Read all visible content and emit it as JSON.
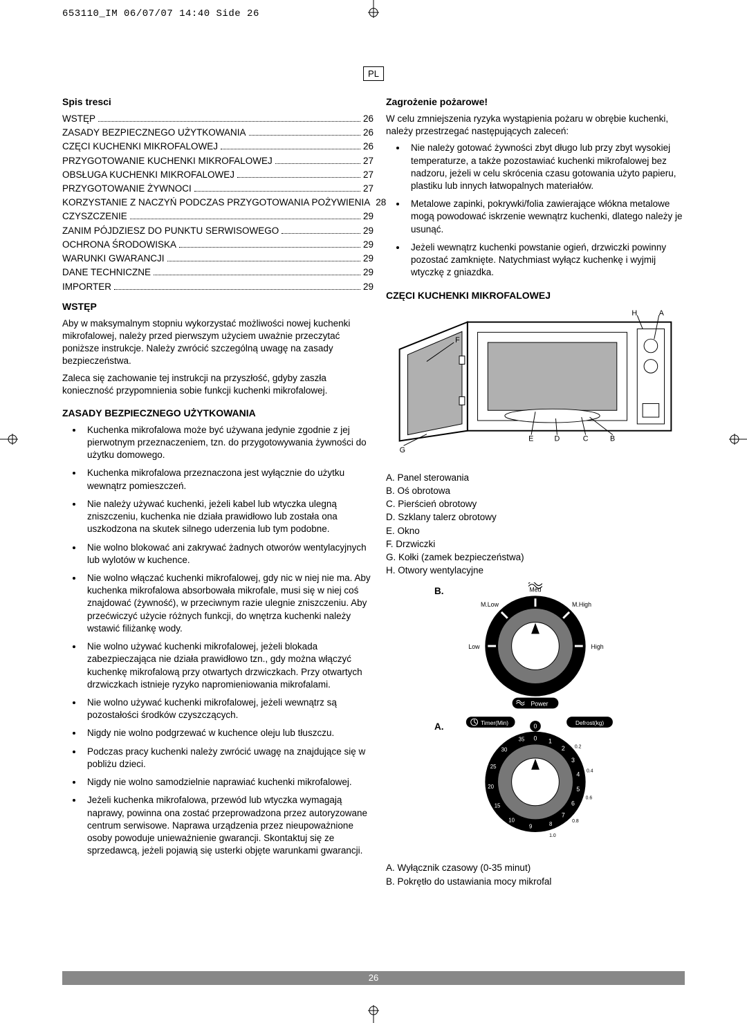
{
  "header": {
    "crop_text": "653110_IM  06/07/07  14:40  Side 26",
    "lang_badge": "PL"
  },
  "toc": {
    "title": "Spis tresci",
    "items": [
      {
        "label": "WSTĘP",
        "page": "26"
      },
      {
        "label": "ZASADY BEZPIECZNEGO UŻYTKOWANIA",
        "page": "26"
      },
      {
        "label": "CZĘCI KUCHENKI MIKROFALOWEJ",
        "page": "26"
      },
      {
        "label": "PRZYGOTOWANIE KUCHENKI MIKROFALOWEJ",
        "page": "27"
      },
      {
        "label": "OBSŁUGA KUCHENKI MIKROFALOWEJ",
        "page": "27"
      },
      {
        "label": "PRZYGOTOWANIE ŻYWNOCI",
        "page": "27"
      },
      {
        "label": "KORZYSTANIE Z NACZYŃ PODCZAS PRZYGOTOWANIA POŻYWIENIA",
        "page": "28"
      },
      {
        "label": "CZYSZCZENIE",
        "page": "29"
      },
      {
        "label": "ZANIM PÓJDZIESZ DO PUNKTU SERWISOWEGO",
        "page": "29"
      },
      {
        "label": "OCHRONA ŚRODOWISKA",
        "page": "29"
      },
      {
        "label": "WARUNKI GWARANCJI",
        "page": "29"
      },
      {
        "label": "DANE TECHNICZNE",
        "page": "29"
      },
      {
        "label": "IMPORTER",
        "page": "29"
      }
    ]
  },
  "intro": {
    "title": "WSTĘP",
    "p1": "Aby w maksymalnym stopniu wykorzystać możliwości nowej kuchenki mikrofalowej, należy przed pierwszym użyciem uważnie przeczytać poniższe instrukcje. Należy zwrócić szczególną uwagę na zasady bezpieczeństwa.",
    "p2": "Zaleca się zachowanie tej instrukcji na przyszłość, gdyby zaszła konieczność przypomnienia sobie funkcji kuchenki mikrofalowej."
  },
  "safety": {
    "title": "ZASADY BEZPIECZNEGO UŻYTKOWANIA",
    "bullets": [
      "Kuchenka mikrofalowa może być używana jedynie zgodnie z jej pierwotnym przeznaczeniem, tzn. do przygotowywania żywności do użytku domowego.",
      "Kuchenka mikrofalowa przeznaczona jest wyłącznie do użytku wewnątrz pomieszczeń.",
      "Nie należy używać kuchenki, jeżeli kabel lub wtyczka ulegną zniszczeniu, kuchenka nie działa prawidłowo lub została ona uszkodzona na skutek silnego uderzenia lub tym podobne.",
      "Nie wolno blokować ani zakrywać żadnych otworów wentylacyjnych lub wylotów w kuchence.",
      "Nie wolno włączać kuchenki mikrofalowej, gdy nic w niej nie ma. Aby kuchenka mikrofalowa absorbowała mikrofale, musi się w niej coś znajdować (żywność), w przeciwnym razie ulegnie zniszczeniu. Aby przećwiczyć użycie różnych funkcji, do wnętrza kuchenki należy wstawić filiżankę wody.",
      "Nie wolno używać kuchenki mikrofalowej, jeżeli blokada zabezpieczająca nie działa prawidłowo tzn., gdy można włączyć kuchenkę mikrofalową przy otwartych drzwiczkach. Przy otwartych drzwiczkach istnieje ryzyko napromieniowania mikrofalami.",
      "Nie wolno używać kuchenki mikrofalowej, jeżeli wewnątrz są pozostałości środków czyszczących.",
      "Nigdy nie wolno podgrzewać w kuchence oleju lub tłuszczu.",
      "Podczas pracy kuchenki należy zwrócić uwagę na znajdujące się w pobliżu dzieci.",
      "Nigdy nie wolno samodzielnie naprawiać kuchenki mikrofalowej.",
      "Jeżeli kuchenka mikrofalowa, przewód lub wtyczka wymagają naprawy, powinna ona zostać przeprowadzona przez autoryzowane centrum serwisowe. Naprawa urządzenia przez nieupoważnione osoby powoduje unieważnienie gwarancji. Skontaktuj się ze sprzedawcą, jeżeli pojawią się usterki objęte warunkami gwarancji."
    ]
  },
  "fire": {
    "title": "Zagrożenie pożarowe!",
    "intro": "W celu zmniejszenia ryzyka wystąpienia pożaru w obrębie kuchenki, należy przestrzegać następujących zaleceń:",
    "bullets": [
      "Nie należy gotować żywności zbyt długo lub przy zbyt wysokiej temperaturze, a także pozostawiać kuchenki mikrofalowej bez nadzoru, jeżeli w celu skrócenia czasu gotowania użyto papieru, plastiku lub innych łatwopalnych materiałów.",
      "Metalowe zapinki, pokrywki/folia zawierające włókna metalowe mogą powodować iskrzenie wewnątrz kuchenki, dlatego należy je usunąć.",
      "Jeżeli wewnątrz kuchenki powstanie ogień, drzwiczki powinny pozostać zamknięte. Natychmiast wyłącz kuchenkę i wyjmij wtyczkę z gniazdka."
    ]
  },
  "parts": {
    "title": "CZĘCI KUCHENKI MIKROFALOWEJ",
    "labels": {
      "A": "A",
      "B": "B",
      "C": "C",
      "D": "D",
      "E": "E",
      "F": "F",
      "G": "G",
      "H": "H"
    },
    "list": [
      "A.    Panel sterowania",
      "B.    Oś obrotowa",
      "C.    Pierścień obrotowy",
      "D.    Szklany talerz obrotowy",
      "E.    Okno",
      "F.    Drzwiczki",
      "G.    Kołki (zamek bezpieczeństwa)",
      "H.    Otwory wentylacyjne"
    ]
  },
  "dials": {
    "b_label": "B.",
    "a_label": "A.",
    "power": {
      "levels": [
        "Low",
        "M.Low",
        "Med",
        "M.High",
        "High"
      ],
      "caption_icon": "Power",
      "ring_color_outer": "#000000",
      "ring_color_inner": "#777777",
      "pointer_color": "#000000"
    },
    "timer": {
      "caption": "Timer(Min)",
      "defrost_caption": "Defrost(kg)",
      "major_ticks": [
        "0",
        "1",
        "2",
        "3",
        "4",
        "5",
        "6",
        "7",
        "8",
        "9",
        "10",
        "15",
        "20",
        "25",
        "30",
        "35"
      ],
      "defrost_values": [
        "0.2",
        "0.4",
        "0.6",
        "0.8",
        "1.0"
      ],
      "ring_color_outer": "#000000",
      "ring_color_inner": "#777777"
    },
    "below": [
      "A.    Wyłącznik czasowy (0-35 minut)",
      "B.    Pokrętło do ustawiania mocy mikrofal"
    ]
  },
  "footer": {
    "page_number": "26"
  },
  "colors": {
    "text": "#000000",
    "footer_bg": "#888888",
    "footer_text": "#ffffff",
    "diagram_stroke": "#000000",
    "diagram_glass": "#b0b0b0"
  }
}
